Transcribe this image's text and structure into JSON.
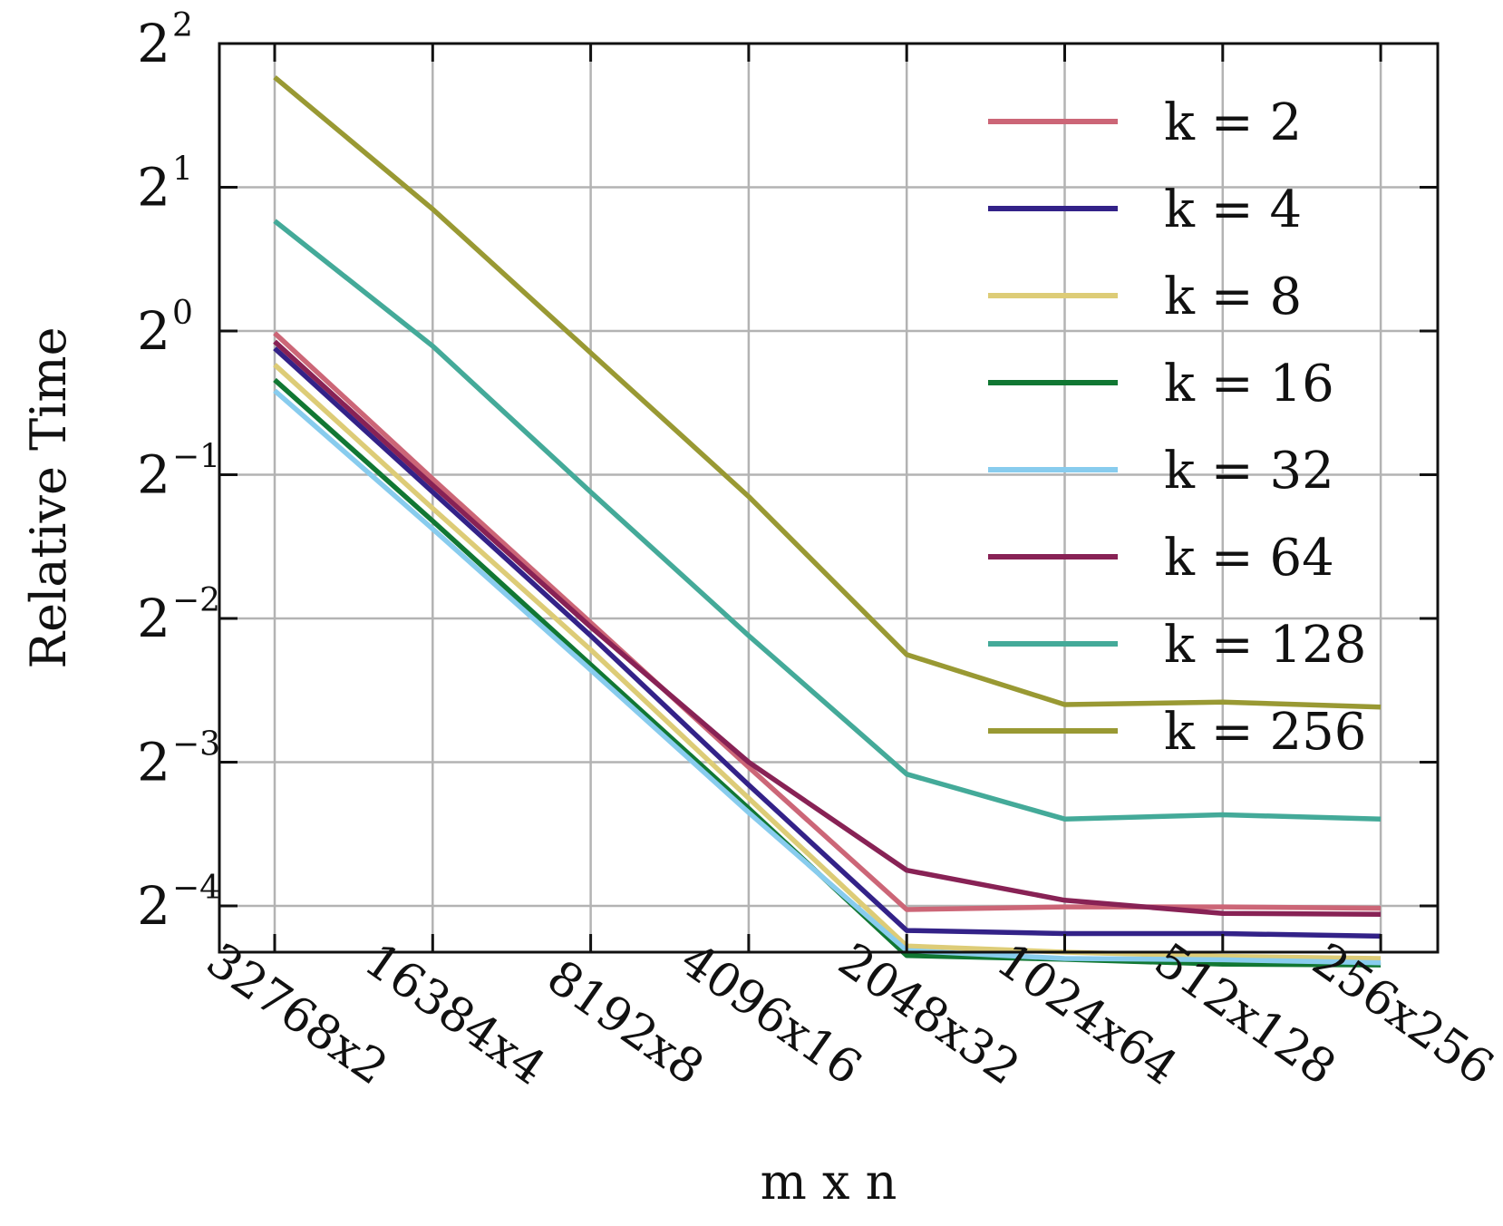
{
  "chart_data": {
    "type": "line",
    "title": "",
    "xlabel": "m x n",
    "ylabel": "Relative Time",
    "y_scale": "log2",
    "ylim": [
      0.05,
      4
    ],
    "grid": true,
    "legend_position": "upper-right",
    "categories": [
      "32768x2",
      "16384x4",
      "8192x8",
      "4096x16",
      "2048x32",
      "1024x64",
      "512x128",
      "256x256"
    ],
    "y_ticks": [
      {
        "base": "2",
        "exp": "2",
        "value": 4
      },
      {
        "base": "2",
        "exp": "1",
        "value": 2
      },
      {
        "base": "2",
        "exp": "0",
        "value": 1
      },
      {
        "base": "2",
        "exp": "−1",
        "value": 0.5
      },
      {
        "base": "2",
        "exp": "−2",
        "value": 0.25
      },
      {
        "base": "2",
        "exp": "−3",
        "value": 0.125
      },
      {
        "base": "2",
        "exp": "−4",
        "value": 0.0625
      }
    ],
    "series": [
      {
        "name": "k = 2",
        "color": "#cc6677",
        "values": [
          0.99,
          0.49,
          0.245,
          0.122,
          0.0614,
          0.0622,
          0.0622,
          0.0618
        ]
      },
      {
        "name": "k = 4",
        "color": "#332288",
        "values": [
          0.92,
          0.46,
          0.23,
          0.112,
          0.0555,
          0.0547,
          0.0547,
          0.054
        ]
      },
      {
        "name": "k = 8",
        "color": "#ddcc77",
        "values": [
          0.85,
          0.425,
          0.215,
          0.105,
          0.0515,
          0.05,
          0.049,
          0.0485
        ]
      },
      {
        "name": "k = 16",
        "color": "#117733",
        "values": [
          0.79,
          0.4,
          0.2,
          0.1,
          0.0492,
          0.0483,
          0.0472,
          0.047
        ]
      },
      {
        "name": "k = 32",
        "color": "#88ccee",
        "values": [
          0.75,
          0.385,
          0.195,
          0.098,
          0.0504,
          0.0485,
          0.0482,
          0.0475
        ]
      },
      {
        "name": "k = 64",
        "color": "#882255",
        "values": [
          0.95,
          0.475,
          0.24,
          0.125,
          0.0742,
          0.0642,
          0.0603,
          0.06
        ]
      },
      {
        "name": "k = 128",
        "color": "#44aa99",
        "values": [
          1.7,
          0.93,
          0.46,
          0.23,
          0.118,
          0.095,
          0.097,
          0.095
        ]
      },
      {
        "name": "k = 256",
        "color": "#999933",
        "values": [
          3.4,
          1.8,
          0.9,
          0.45,
          0.21,
          0.165,
          0.167,
          0.163
        ]
      }
    ]
  }
}
